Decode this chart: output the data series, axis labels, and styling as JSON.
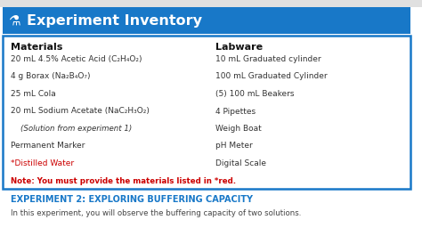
{
  "header_bg": "#1878c8",
  "header_text": "Experiment Inventory",
  "header_text_color": "#ffffff",
  "header_fontsize": 11.5,
  "body_bg": "#ffffff",
  "border_color": "#1878c8",
  "fig_bg": "#ffffff",
  "top_strip_bg": "#e8e8e8",
  "col1_header": "Materials",
  "col2_header": "Labware",
  "col_header_fontsize": 8.0,
  "col_header_color": "#111111",
  "materials": [
    "20 mL 4.5% Acetic Acid (C₂H₄O₂)",
    "4 g Borax (Na₂B₄O₇)",
    "25 mL Cola",
    "20 mL Sodium Acetate (NaC₂H₃O₂)",
    "    (Solution from experiment 1)",
    "Permanent Marker",
    "*Distilled Water"
  ],
  "labware": [
    "10 mL Graduated cylinder",
    "100 mL Graduated Cylinder",
    "(5) 100 mL Beakers",
    "4 Pipettes",
    "Weigh Boat",
    "pH Meter",
    "Digital Scale"
  ],
  "red_items": [
    "*Distilled Water"
  ],
  "note_text": "Note: You must provide the materials listed in *red.",
  "note_color": "#cc0000",
  "item_fontsize": 6.5,
  "note_fontsize": 6.2,
  "sub_header_text": "EXPERIMENT 2: EXPLORING BUFFERING CAPACITY",
  "sub_header_color": "#1878c8",
  "sub_header_fontsize": 7.0,
  "body_text": "In this experiment, you will observe the buffering capacity of two solutions.",
  "body_text_color": "#444444",
  "body_text_fontsize": 6.2,
  "italic_items": [
    "    (Solution from experiment 1)"
  ]
}
